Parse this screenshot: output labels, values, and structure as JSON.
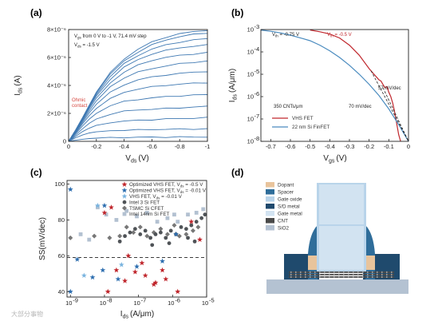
{
  "panels": {
    "a": "(a)",
    "b": "(b)",
    "c": "(c)",
    "d": "(d)"
  },
  "watermark": "大部分事物",
  "chart_data": [
    {
      "panel": "a",
      "type": "line",
      "xlabel": "V",
      "xlabel_sub": "ds",
      "xlabel_unit": "(V)",
      "ylabel": "I",
      "ylabel_sub": "ds",
      "ylabel_unit": "(A)",
      "xlim": [
        0,
        -1
      ],
      "ylim": [
        0,
        8e-06
      ],
      "xticks": [
        "0",
        "-0.2",
        "-0.4",
        "-0.6",
        "-0.8",
        "-1"
      ],
      "xtick_values": [
        0,
        -0.2,
        -0.4,
        -0.6,
        -0.8,
        -1
      ],
      "yticks": [
        "0",
        "2×10⁻⁶",
        "4×10⁻⁶",
        "6×10⁻⁶",
        "8×10⁻⁶"
      ],
      "ytick_values": [
        0,
        2e-06,
        4e-06,
        6e-06,
        8e-06
      ],
      "annotation_line1_main": "V",
      "annotation_line1_sub": "gs",
      "annotation_line1_rest": " from 0 V to -1 V, 71.4 mV step",
      "annotation_line2_main": "V",
      "annotation_line2_sub": "ds",
      "annotation_line2_rest": " = -1.5 V",
      "ohmic_label_1": "Ohmic",
      "ohmic_label_2": "contact",
      "line_color": "#3e78b2",
      "x": [
        0,
        -0.05,
        -0.1,
        -0.15,
        -0.2,
        -0.3,
        -0.4,
        -0.5,
        -0.6,
        -0.7,
        -0.8,
        -0.9,
        -1.0
      ],
      "series": [
        {
          "values": [
            0,
            8e-08,
            1.5e-07,
            2e-07,
            2.3e-07,
            2.6e-07,
            2.8e-07,
            2.9e-07,
            3e-07,
            3e-07,
            3.1e-07,
            3.1e-07,
            3.2e-07
          ]
        },
        {
          "values": [
            0,
            2.5e-07,
            4.5e-07,
            6e-07,
            6.8e-07,
            7.6e-07,
            8e-07,
            8.2e-07,
            8.4e-07,
            8.6e-07,
            8.7e-07,
            8.8e-07,
            9e-07
          ]
        },
        {
          "values": [
            0,
            3.5e-07,
            7e-07,
            9.5e-07,
            1.15e-06,
            1.35e-06,
            1.45e-06,
            1.5e-06,
            1.55e-06,
            1.6e-06,
            1.63e-06,
            1.66e-06,
            1.7e-06
          ]
        },
        {
          "values": [
            0,
            4.5e-07,
            9e-07,
            1.3e-06,
            1.6e-06,
            1.95e-06,
            2.15e-06,
            2.25e-06,
            2.3e-06,
            2.35e-06,
            2.4e-06,
            2.45e-06,
            2.5e-06
          ]
        },
        {
          "values": [
            0,
            5.5e-07,
            1.1e-06,
            1.6e-06,
            2e-06,
            2.55e-06,
            2.85e-06,
            3e-06,
            3.1e-06,
            3.2e-06,
            3.25e-06,
            3.3e-06,
            3.35e-06
          ]
        },
        {
          "values": [
            0,
            6e-07,
            1.25e-06,
            1.85e-06,
            2.35e-06,
            3.05e-06,
            3.5e-06,
            3.75e-06,
            3.9e-06,
            4e-06,
            4.1e-06,
            4.15e-06,
            4.2e-06
          ]
        },
        {
          "values": [
            0,
            6.5e-07,
            1.35e-06,
            2.05e-06,
            2.65e-06,
            3.5e-06,
            4.05e-06,
            4.4e-06,
            4.6e-06,
            4.75e-06,
            4.85e-06,
            4.95e-06,
            5e-06
          ]
        },
        {
          "values": [
            0,
            7e-07,
            1.45e-06,
            2.2e-06,
            2.9e-06,
            3.9e-06,
            4.55e-06,
            4.95e-06,
            5.2e-06,
            5.4e-06,
            5.55e-06,
            5.65e-06,
            5.75e-06
          ]
        },
        {
          "values": [
            0,
            7.2e-07,
            1.52e-06,
            2.35e-06,
            3.1e-06,
            4.2e-06,
            4.95e-06,
            5.45e-06,
            5.8e-06,
            6e-06,
            6.15e-06,
            6.25e-06,
            6.35e-06
          ]
        },
        {
          "values": [
            0,
            7.5e-07,
            1.58e-06,
            2.45e-06,
            3.25e-06,
            4.45e-06,
            5.3e-06,
            5.85e-06,
            6.25e-06,
            6.5e-06,
            6.7e-06,
            6.8e-06,
            6.9e-06
          ]
        },
        {
          "values": [
            0,
            7.8e-07,
            1.62e-06,
            2.52e-06,
            3.35e-06,
            4.65e-06,
            5.55e-06,
            6.15e-06,
            6.6e-06,
            6.9e-06,
            7.1e-06,
            7.25e-06,
            7.35e-06
          ]
        },
        {
          "values": [
            0,
            8e-07,
            1.66e-06,
            2.58e-06,
            3.45e-06,
            4.8e-06,
            5.75e-06,
            6.4e-06,
            6.9e-06,
            7.25e-06,
            7.5e-06,
            7.65e-06,
            7.75e-06
          ]
        },
        {
          "values": [
            0,
            8.2e-07,
            1.7e-06,
            2.62e-06,
            3.52e-06,
            4.9e-06,
            5.9e-06,
            6.6e-06,
            7.1e-06,
            7.45e-06,
            7.7e-06,
            7.85e-06,
            7.95e-06
          ]
        }
      ]
    },
    {
      "panel": "b",
      "type": "line",
      "xlabel": "V",
      "xlabel_sub": "gs",
      "xlabel_unit": "(V)",
      "ylabel": "I",
      "ylabel_sub": "ds",
      "ylabel_unit": "(A/μm)",
      "log_y": true,
      "xlim": [
        -0.75,
        0
      ],
      "ylim_exp": [
        -8,
        -3
      ],
      "xticks": [
        "-0.7",
        "-0.6",
        "-0.5",
        "-0.4",
        "-0.3",
        "-0.2",
        "-0.1",
        "0"
      ],
      "xtick_values": [
        -0.7,
        -0.6,
        -0.5,
        -0.4,
        -0.3,
        -0.2,
        -0.1,
        0
      ],
      "ytick_base": "10",
      "yticks_exp": [
        "-3",
        "-4",
        "-5",
        "-6",
        "-7",
        "-8"
      ],
      "ytick_exp_values": [
        -3,
        -4,
        -5,
        -6,
        -7,
        -8
      ],
      "annotations": {
        "vth_blue_main": "V",
        "vth_blue_sub": "th",
        "vth_blue_rest": " = -0.75 V",
        "vth_red_main": "V",
        "vth_red_sub": "th",
        "vth_red_rest": " = -0.5 V",
        "ss_red": "57 mV/dec",
        "ss_blue": "70 mV/dec",
        "density": "350 CNTs/μm"
      },
      "legend_placement": "bottom-center",
      "series": [
        {
          "name": "VHS FET",
          "color": "#c0272d",
          "x": [
            -0.5,
            -0.45,
            -0.4,
            -0.35,
            -0.3,
            -0.25,
            -0.2,
            -0.18,
            -0.16,
            -0.15,
            -0.14,
            -0.13,
            -0.12,
            -0.11,
            -0.1,
            -0.09,
            -0.08,
            -0.07,
            -0.06,
            -0.05,
            -0.04
          ],
          "log_values": [
            -3.02,
            -3.1,
            -3.2,
            -3.38,
            -3.7,
            -4.15,
            -4.75,
            -4.95,
            -5.15,
            -5.25,
            -5.3,
            -5.45,
            -5.6,
            -5.55,
            -5.8,
            -6.0,
            -6.3,
            -6.7,
            -7.2,
            -7.7,
            -8.0
          ]
        },
        {
          "name": "22 nm Si FinFET",
          "color": "#4a8bbf",
          "x": [
            -0.75,
            -0.7,
            -0.65,
            -0.6,
            -0.55,
            -0.5,
            -0.45,
            -0.4,
            -0.35,
            -0.3,
            -0.25,
            -0.2,
            -0.15,
            -0.1,
            -0.05,
            0.0
          ],
          "log_values": [
            -3.02,
            -3.08,
            -3.15,
            -3.25,
            -3.37,
            -3.5,
            -3.7,
            -3.95,
            -4.25,
            -4.6,
            -5.0,
            -5.45,
            -5.95,
            -6.55,
            -7.25,
            -8.0
          ]
        }
      ],
      "guide_lines": [
        {
          "color": "#222222",
          "style": "dashed",
          "x": [
            -0.19,
            0.0
          ],
          "log_values": [
            -4.85,
            -8.0
          ]
        },
        {
          "color": "#222222",
          "style": "dashed",
          "x": [
            -0.13,
            0.0
          ],
          "log_values": [
            -5.6,
            -8.0
          ]
        }
      ]
    },
    {
      "panel": "c",
      "type": "scatter",
      "log_x": true,
      "xlabel": "I",
      "xlabel_sub": "ds",
      "xlabel_unit": "(A/μm)",
      "ylabel": "SS(mV/dec)",
      "xlim_exp": [
        -9.1,
        -5.0
      ],
      "ylim": [
        37,
        102
      ],
      "xtick_base": "10",
      "xticks_exp": [
        "-9",
        "-8",
        "-7",
        "-6",
        "-5"
      ],
      "xtick_exp_values": [
        -9,
        -8,
        -7,
        -6,
        -5
      ],
      "yticks": [
        "40",
        "60",
        "80",
        "100"
      ],
      "ytick_values": [
        40,
        60,
        80,
        100
      ],
      "reference_line": 59,
      "legend_placement": "top",
      "series": [
        {
          "name_main": "Optimized VHS FET, V",
          "name_sub": "ds",
          "name_rest": " = -0.5 V",
          "marker": "star",
          "color": "#c0272d",
          "points": [
            [
              -7.9,
              40
            ],
            [
              -7.4,
              46
            ],
            [
              -7.1,
              51
            ],
            [
              -6.8,
              49
            ],
            [
              -6.55,
              44
            ],
            [
              -6.5,
              45
            ],
            [
              -6.2,
              47
            ],
            [
              -5.85,
              40
            ],
            [
              -7.3,
              60
            ],
            [
              -8.0,
              84
            ],
            [
              -7.8,
              87
            ],
            [
              -5.2,
              69
            ],
            [
              -5.45,
              79
            ],
            [
              -7.65,
              52
            ],
            [
              -6.9,
              56
            ],
            [
              -6.3,
              52
            ]
          ]
        },
        {
          "name_main": "Optimized VHS FET, V",
          "name_sub": "ds",
          "name_rest": " = -0.01 V",
          "marker": "star",
          "color": "#2f6fb0",
          "points": [
            [
              -9.0,
              40
            ],
            [
              -8.35,
              48
            ],
            [
              -8.05,
              52
            ],
            [
              -7.6,
              47
            ],
            [
              -7.05,
              54
            ],
            [
              -6.3,
              57
            ],
            [
              -5.9,
              72
            ],
            [
              -8.8,
              58
            ],
            [
              -8.0,
              88
            ],
            [
              -9.0,
              97
            ]
          ]
        },
        {
          "name_main": "VHS FET, V",
          "name_sub": "ds",
          "name_rest": " = -0.01 V",
          "marker": "star",
          "color": "#7ab4df",
          "points": [
            [
              -8.6,
              49
            ],
            [
              -8.2,
              88
            ],
            [
              -7.5,
              55
            ]
          ]
        },
        {
          "name": "Intel 3 Si FET",
          "marker": "circle",
          "color": "#4f5357",
          "points": [
            [
              -7.4,
              71
            ],
            [
              -7.25,
              73
            ],
            [
              -7.1,
              75
            ],
            [
              -6.95,
              72
            ],
            [
              -6.8,
              74
            ],
            [
              -6.65,
              70
            ],
            [
              -6.5,
              72
            ],
            [
              -6.35,
              73
            ],
            [
              -6.2,
              70
            ],
            [
              -6.05,
              74
            ],
            [
              -5.9,
              72
            ],
            [
              -5.75,
              76
            ],
            [
              -5.6,
              75
            ],
            [
              -5.45,
              77
            ],
            [
              -5.3,
              79
            ],
            [
              -5.15,
              81
            ],
            [
              -5.05,
              83
            ],
            [
              -7.55,
              68
            ],
            [
              -6.6,
              66
            ],
            [
              -6.1,
              67
            ],
            [
              -5.55,
              70
            ],
            [
              -5.35,
              68
            ]
          ]
        },
        {
          "name": "TSMC Si CFET",
          "marker": "diamond",
          "color": "#777777",
          "points": [
            [
              -9.0,
              70
            ],
            [
              -8.3,
              71
            ],
            [
              -7.85,
              70
            ],
            [
              -7.55,
              71
            ],
            [
              -7.35,
              76
            ],
            [
              -7.15,
              73
            ],
            [
              -6.95,
              76
            ],
            [
              -6.75,
              71
            ],
            [
              -6.55,
              73
            ],
            [
              -6.35,
              75
            ],
            [
              -6.15,
              72
            ],
            [
              -5.95,
              77
            ],
            [
              -5.8,
              71
            ],
            [
              -5.6,
              72
            ],
            [
              -5.4,
              74
            ],
            [
              -5.25,
              76
            ]
          ]
        },
        {
          "name": "Intel 14nm Si FET",
          "marker": "square",
          "color": "#b3c1d1",
          "points": [
            [
              -8.7,
              72
            ],
            [
              -8.45,
              69
            ],
            [
              -8.2,
              87
            ],
            [
              -7.95,
              83
            ],
            [
              -7.65,
              80
            ],
            [
              -7.35,
              85
            ],
            [
              -7.05,
              82
            ],
            [
              -6.75,
              84
            ],
            [
              -6.45,
              79
            ],
            [
              -6.15,
              81
            ],
            [
              -5.85,
              79
            ],
            [
              -5.55,
              83
            ],
            [
              -5.3,
              84
            ],
            [
              -5.1,
              86
            ],
            [
              -5.95,
              83
            ]
          ]
        }
      ]
    }
  ],
  "device_diagram": {
    "legend": [
      {
        "label": "Dopant",
        "color": "#e8c49c"
      },
      {
        "label": "Spacer",
        "color": "#2f6d9a"
      },
      {
        "label": "Gate oxide",
        "color": "#b9d4ea"
      },
      {
        "label": "S/D metal",
        "color": "#1f4a6d"
      },
      {
        "label": "Gate metal",
        "color": "#d2e3f1"
      },
      {
        "label": "CNT",
        "color": "#4a4a4a"
      },
      {
        "label": "SiO2",
        "color": "#b4c2d2"
      }
    ]
  }
}
